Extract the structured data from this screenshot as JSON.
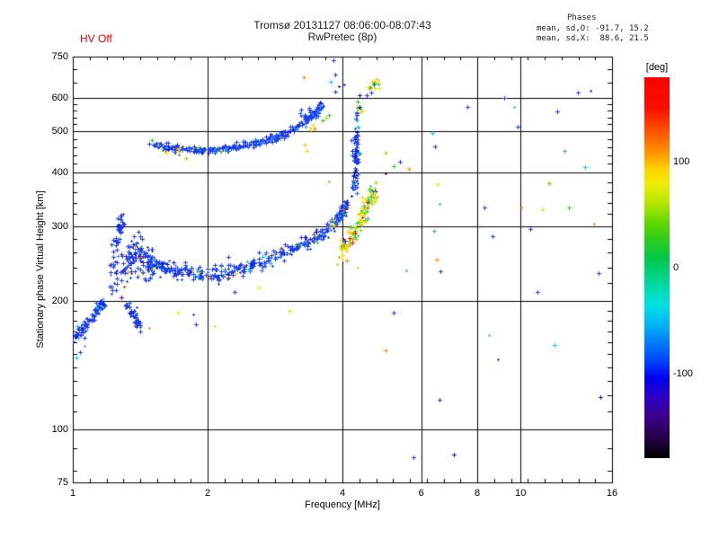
{
  "header": {
    "title_line1": "Tromsø 20131127 08:06:00-08:07:43",
    "title_line2": "RwPretec (8p)",
    "hv_status": "HV Off",
    "hv_color": "#e80000",
    "phases": {
      "heading": "Phases",
      "line_o": "mean, sd,O: -91.7, 15.2",
      "line_x": "mean, sd,X:  88.6, 21.5"
    }
  },
  "chart_data": {
    "type": "scatter",
    "title": "Tromsø 20131127 08:06:00-08:07:43",
    "subtitle": "RwPretec (8p)",
    "x_axis": {
      "label": "Frequency [MHz]",
      "scale": "log2",
      "min": 1,
      "max": 16,
      "major_ticks": [
        1,
        2,
        4,
        6,
        8,
        10,
        16
      ],
      "gridlines": [
        2,
        4,
        6,
        8,
        10
      ]
    },
    "y_axis": {
      "label": "Stationary phase Virtual Height [km]",
      "scale": "log10",
      "min": 75,
      "max": 750,
      "major_ticks": [
        75,
        100,
        200,
        300,
        400,
        500,
        600,
        750
      ],
      "minor_ticks": [
        80,
        90,
        110,
        120,
        130,
        140,
        150,
        160,
        170,
        180,
        190,
        220,
        240,
        260,
        280,
        320,
        340,
        360,
        380,
        420,
        440,
        460,
        480,
        520,
        540,
        560,
        580,
        650,
        700
      ],
      "gridlines": [
        100,
        200,
        300,
        400,
        500,
        600
      ]
    },
    "colorbar": {
      "label": "[deg]",
      "min": -180,
      "max": 180,
      "ticks": [
        100,
        0,
        -100
      ],
      "gradient_stops": [
        [
          0,
          "#ff0000"
        ],
        [
          8,
          "#fb0c00"
        ],
        [
          14,
          "#ff5000"
        ],
        [
          20,
          "#ff9600"
        ],
        [
          24,
          "#ffd200"
        ],
        [
          28,
          "#eeee00"
        ],
        [
          33,
          "#b4e600"
        ],
        [
          38,
          "#64d800"
        ],
        [
          43,
          "#28cc1e"
        ],
        [
          48,
          "#00c850"
        ],
        [
          52,
          "#00d282"
        ],
        [
          56,
          "#00dcb4"
        ],
        [
          60,
          "#00e0e6"
        ],
        [
          65,
          "#00b4f4"
        ],
        [
          70,
          "#0078ff"
        ],
        [
          75,
          "#003cff"
        ],
        [
          79,
          "#0000f0"
        ],
        [
          84,
          "#2e00c4"
        ],
        [
          89,
          "#3c0090"
        ],
        [
          94,
          "#28004e"
        ],
        [
          100,
          "#000000"
        ]
      ]
    },
    "palette": {
      "blue": "#1a3cf0",
      "medblue": "#2a64f8",
      "navy": "#0a14cc",
      "lightblue": "#46a0ff",
      "cyan": "#00c8f0",
      "springgreen": "#00d26e",
      "green": "#28c828",
      "yellowgreen": "#9cdc00",
      "yellow": "#eee000",
      "gold": "#ffc400",
      "orange": "#ff8c00",
      "red": "#f01400",
      "purple": "#5a00b4"
    },
    "seed": 1127,
    "clusters": [
      {
        "name": "e-streak-left",
        "path": [
          [
            1.0,
            164
          ],
          [
            1.04,
            171
          ],
          [
            1.09,
            181
          ],
          [
            1.14,
            192
          ],
          [
            1.17,
            199
          ]
        ],
        "count": 95,
        "jx": 1.5,
        "jh": 3,
        "colors": {
          "blue": 70,
          "navy": 12,
          "medblue": 10,
          "lightblue": 5,
          "cyan": 3
        }
      },
      {
        "name": "e-streak-right",
        "path": [
          [
            1.31,
            198
          ],
          [
            1.35,
            188
          ],
          [
            1.39,
            180
          ],
          [
            1.42,
            174
          ]
        ],
        "count": 55,
        "jx": 1.5,
        "jh": 3,
        "colors": {
          "blue": 72,
          "navy": 14,
          "medblue": 10,
          "orange": 2,
          "yellow": 2
        }
      },
      {
        "name": "es-strand",
        "path": [
          [
            1.22,
            206
          ],
          [
            1.235,
            240
          ],
          [
            1.25,
            272
          ],
          [
            1.27,
            298
          ],
          [
            1.29,
            310
          ]
        ],
        "count": 60,
        "jx": 2.5,
        "jh": 9,
        "colors": {
          "blue": 80,
          "navy": 6,
          "medblue": 8,
          "purple": 3,
          "lightblue": 3
        }
      },
      {
        "name": "es-cluster",
        "path": [
          [
            1.29,
            230
          ],
          [
            1.34,
            250
          ],
          [
            1.39,
            262
          ],
          [
            1.45,
            254
          ],
          [
            1.5,
            241
          ]
        ],
        "count": 125,
        "jx": 3.5,
        "jh": 13,
        "colors": {
          "blue": 72,
          "navy": 6,
          "medblue": 6,
          "purple": 4,
          "lightblue": 4,
          "yellow": 3,
          "green": 2,
          "orange": 2,
          "red": 1
        }
      },
      {
        "name": "e-f1-band",
        "path": [
          [
            1.47,
            249
          ],
          [
            1.6,
            241
          ],
          [
            1.75,
            235
          ],
          [
            1.95,
            231
          ],
          [
            2.15,
            233
          ],
          [
            2.4,
            240
          ],
          [
            2.7,
            250
          ],
          [
            3.0,
            261
          ],
          [
            3.3,
            273
          ],
          [
            3.6,
            289
          ],
          [
            3.85,
            306
          ],
          [
            4.0,
            323
          ],
          [
            4.08,
            342
          ]
        ],
        "count": 430,
        "jx": 2,
        "jh": 5,
        "colors": {
          "blue": 66,
          "medblue": 13,
          "navy": 5,
          "lightblue": 5,
          "cyan": 3,
          "yellow": 3,
          "orange": 1.5,
          "green": 1.5,
          "purple": 1,
          "red": 1
        }
      },
      {
        "name": "o-asymptote",
        "path": [
          [
            4.22,
            352
          ],
          [
            4.24,
            392
          ],
          [
            4.26,
            430
          ],
          [
            4.28,
            462
          ],
          [
            4.3,
            488
          ]
        ],
        "count": 70,
        "jx": 2,
        "jh": 10,
        "colors": {
          "blue": 55,
          "navy": 22,
          "medblue": 12,
          "cyan": 6,
          "lightblue": 5
        }
      },
      {
        "name": "o-asymptote-top",
        "path": [
          [
            4.3,
            500
          ],
          [
            4.34,
            540
          ],
          [
            4.4,
            585
          ]
        ],
        "count": 16,
        "jx": 2.5,
        "jh": 12,
        "colors": {
          "blue": 50,
          "cyan": 15,
          "navy": 15,
          "yellow": 10,
          "green": 10
        }
      },
      {
        "name": "x-trace",
        "path": [
          [
            3.95,
            262
          ],
          [
            4.08,
            273
          ],
          [
            4.22,
            288
          ],
          [
            4.36,
            308
          ],
          [
            4.5,
            332
          ],
          [
            4.62,
            352
          ],
          [
            4.72,
            366
          ]
        ],
        "count": 135,
        "jx": 2.5,
        "jh": 9,
        "colors": {
          "yellow": 33,
          "yellowgreen": 17,
          "gold": 12,
          "green": 12,
          "orange": 8,
          "springgreen": 6,
          "cyan": 4,
          "lightblue": 3,
          "red": 2,
          "purple": 2,
          "blue": 1
        }
      },
      {
        "name": "f-trace",
        "path": [
          [
            1.51,
            468
          ],
          [
            1.62,
            459
          ],
          [
            1.78,
            454
          ],
          [
            1.95,
            452
          ],
          [
            2.12,
            455
          ],
          [
            2.3,
            460
          ],
          [
            2.5,
            467
          ],
          [
            2.7,
            476
          ],
          [
            2.9,
            489
          ],
          [
            3.1,
            506
          ],
          [
            3.3,
            528
          ],
          [
            3.45,
            550
          ],
          [
            3.58,
            575
          ]
        ],
        "count": 390,
        "jx": 2,
        "jh": 4.5,
        "colors": {
          "blue": 62,
          "medblue": 16,
          "navy": 7,
          "lightblue": 7,
          "cyan": 4,
          "yellow": 2,
          "green": 1,
          "gold": 1
        }
      },
      {
        "name": "f-top-cluster",
        "path": [
          [
            3.2,
            538
          ],
          [
            3.35,
            556
          ],
          [
            3.5,
            572
          ],
          [
            3.6,
            582
          ]
        ],
        "count": 18,
        "jx": 2.5,
        "jh": 8,
        "colors": {
          "blue": 60,
          "medblue": 20,
          "navy": 10,
          "lightblue": 10
        }
      },
      {
        "name": "top-mixed-cluster",
        "path": [
          [
            4.56,
            622
          ],
          [
            4.68,
            640
          ],
          [
            4.8,
            658
          ]
        ],
        "count": 15,
        "jx": 2.5,
        "jh": 10,
        "colors": {
          "yellow": 30,
          "green": 20,
          "gold": 15,
          "blue": 15,
          "red": 10,
          "orange": 10
        }
      }
    ],
    "sparse_points": [
      [
        3.82,
        735,
        "blue"
      ],
      [
        3.86,
        680,
        "blue"
      ],
      [
        3.93,
        640,
        "navy"
      ],
      [
        3.77,
        655,
        "cyan"
      ],
      [
        3.85,
        622,
        "blue"
      ],
      [
        4.04,
        645,
        "blue"
      ],
      [
        3.28,
        672,
        "orange"
      ],
      [
        4.3,
        575,
        "yellow"
      ],
      [
        4.42,
        560,
        "gold"
      ],
      [
        5.38,
        424,
        "blue"
      ],
      [
        5.63,
        408,
        "orange"
      ],
      [
        5.0,
        445,
        "yellowgreen"
      ],
      [
        5.2,
        415,
        "green"
      ],
      [
        5.0,
        398,
        "purple"
      ],
      [
        3.73,
        382,
        "orange"
      ],
      [
        6.35,
        497,
        "cyan"
      ],
      [
        6.44,
        462,
        "blue"
      ],
      [
        6.52,
        376,
        "yellow"
      ],
      [
        6.58,
        338,
        "cyan"
      ],
      [
        6.4,
        292,
        "lightblue"
      ],
      [
        6.49,
        250,
        "orange"
      ],
      [
        6.62,
        235,
        "blue"
      ],
      [
        7.6,
        572,
        "blue"
      ],
      [
        8.3,
        332,
        "blue"
      ],
      [
        8.65,
        284,
        "blue"
      ],
      [
        8.5,
        166,
        "cyan"
      ],
      [
        8.9,
        146,
        "blue"
      ],
      [
        9.2,
        600,
        "blue"
      ],
      [
        9.65,
        572,
        "cyan"
      ],
      [
        9.85,
        514,
        "blue"
      ],
      [
        10.05,
        332,
        "orange"
      ],
      [
        10.5,
        295,
        "blue"
      ],
      [
        10.9,
        210,
        "blue"
      ],
      [
        11.2,
        329,
        "yellow"
      ],
      [
        11.6,
        379,
        "orange"
      ],
      [
        11.9,
        158,
        "cyan"
      ],
      [
        12.05,
        559,
        "blue"
      ],
      [
        12.5,
        450,
        "lightblue"
      ],
      [
        12.8,
        332,
        "green"
      ],
      [
        13.4,
        619,
        "blue"
      ],
      [
        13.9,
        412,
        "cyan"
      ],
      [
        14.3,
        624,
        "blue"
      ],
      [
        14.6,
        304,
        "orange"
      ],
      [
        14.9,
        233,
        "blue"
      ],
      [
        15.1,
        119,
        "navy"
      ],
      [
        6.6,
        117,
        "blue"
      ],
      [
        7.1,
        87,
        "navy"
      ],
      [
        5.75,
        86,
        "blue"
      ],
      [
        5.0,
        153,
        "orange"
      ],
      [
        5.2,
        188,
        "blue"
      ],
      [
        5.55,
        236,
        "green"
      ],
      [
        4.33,
        240,
        "gold"
      ],
      [
        1.62,
        445,
        "yellow"
      ],
      [
        1.79,
        433,
        "yellowgreen"
      ],
      [
        1.5,
        478,
        "green"
      ],
      [
        3.3,
        466,
        "gold"
      ],
      [
        3.33,
        450,
        "yellow"
      ],
      [
        3.38,
        512,
        "gold"
      ],
      [
        3.43,
        518,
        "yellow"
      ],
      [
        3.46,
        508,
        "orange"
      ],
      [
        3.41,
        503,
        "yellow"
      ],
      [
        3.62,
        532,
        "green"
      ],
      [
        3.68,
        540,
        "yellowgreen"
      ],
      [
        3.73,
        548,
        "green"
      ],
      [
        1.48,
        173,
        "orange"
      ],
      [
        1.72,
        188,
        "yellow"
      ],
      [
        1.86,
        186,
        "blue"
      ],
      [
        2.08,
        175,
        "yellow"
      ],
      [
        1.88,
        176,
        "blue"
      ],
      [
        2.3,
        210,
        "blue"
      ],
      [
        2.6,
        215,
        "yellow"
      ],
      [
        3.05,
        190,
        "yellow"
      ],
      [
        1.04,
        152,
        "blue"
      ],
      [
        1.06,
        157,
        "lightblue"
      ],
      [
        1.02,
        147,
        "cyan"
      ]
    ]
  }
}
